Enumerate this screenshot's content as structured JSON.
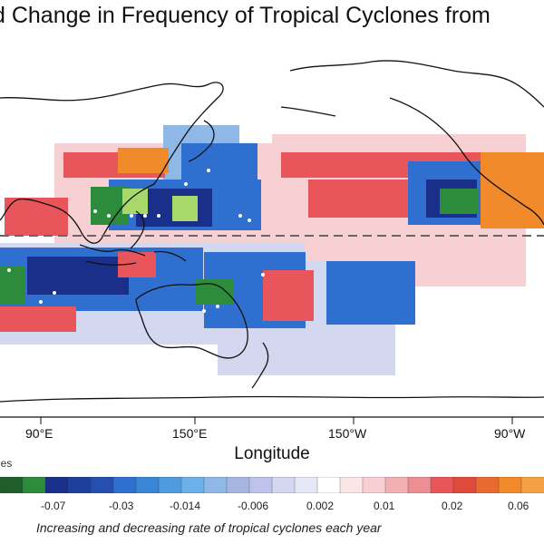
{
  "title": "d Change in Frequency of Tropical Cyclones from",
  "map": {
    "xlabel": "Longitude",
    "x_ticks": [
      "90°E",
      "150°E",
      "150°W",
      "90°W"
    ],
    "equator_line": "dashed",
    "colors": {
      "strong_decrease": "#1a2f8a",
      "decrease": "#2f6fcf",
      "weak_decrease": "#8fb8e6",
      "faint_decrease": "#d3d8f0",
      "neutral": "#ffffff",
      "faint_increase": "#f7d0d4",
      "increase": "#e8555a",
      "strong_increase": "#f08a2a",
      "significant_green": "#2c8c3c",
      "light_green": "#a6d96a"
    }
  },
  "legend": {
    "partial_label": "nes",
    "tick_labels": [
      "-0.07",
      "-0.03",
      "-0.014",
      "-0.006",
      "0.002",
      "0.01",
      "0.02",
      "0.06"
    ],
    "caption": "Increasing and decreasing rate of tropical cyclones each year"
  }
}
